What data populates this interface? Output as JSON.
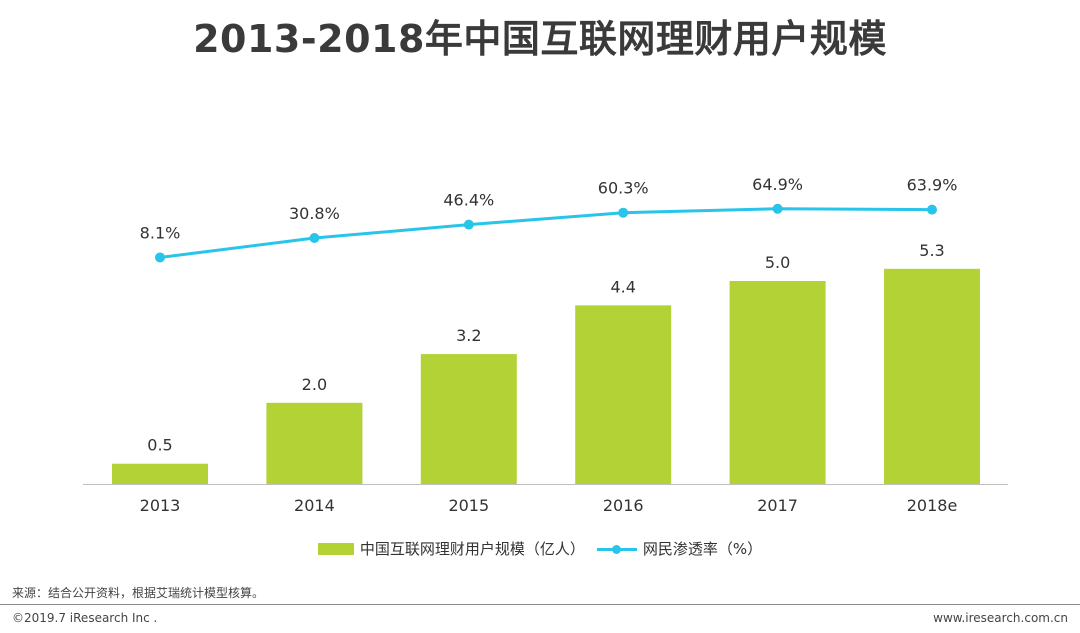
{
  "page": {
    "title": "2013-2018年中国互联网理财用户规模",
    "source": "来源：结合公开资料，根据艾瑞统计模型核算。",
    "copyright": "©2019.7 iResearch Inc .",
    "website": "www.iresearch.com.cn"
  },
  "colors": {
    "bar": "#b2d235",
    "line": "#29c4ea",
    "axis": "#bfbfbf"
  },
  "chart_data": {
    "type": "bar",
    "title": "2013-2018年中国互联网理财用户规模",
    "categories": [
      "2013",
      "2014",
      "2015",
      "2016",
      "2017",
      "2018e"
    ],
    "series": [
      {
        "name": "中国互联网理财用户规模（亿人）",
        "type": "bar",
        "values": [
          0.5,
          2.0,
          3.2,
          4.4,
          5.0,
          5.3
        ],
        "labels": [
          "0.5",
          "2.0",
          "3.2",
          "4.4",
          "5.0",
          "5.3"
        ]
      },
      {
        "name": "网民渗透率（%）",
        "type": "line",
        "values": [
          8.1,
          30.8,
          46.4,
          60.3,
          64.9,
          63.9
        ],
        "labels": [
          "8.1%",
          "30.8%",
          "46.4%",
          "60.3%",
          "64.9%",
          "63.9%"
        ]
      }
    ],
    "legend_position": "bottom",
    "grid": false
  }
}
